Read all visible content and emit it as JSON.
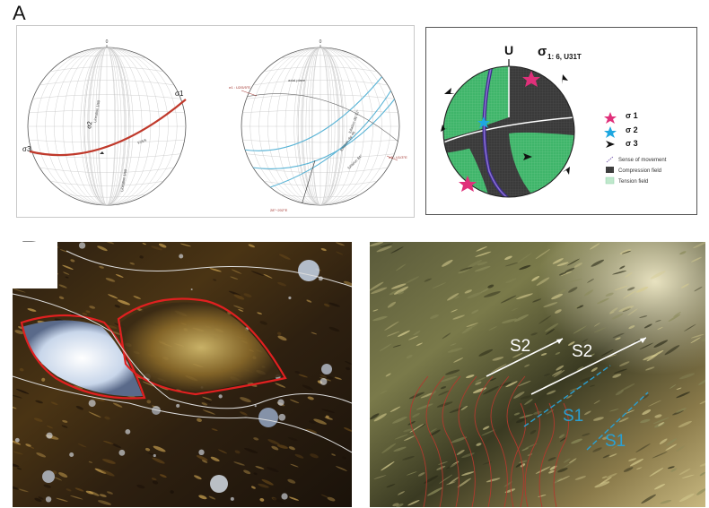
{
  "panel_labels": {
    "a": "A",
    "b": "B"
  },
  "stereonet_left": {
    "north": "0",
    "sigma1": "σ1",
    "sigma2": "σ2",
    "sigma3": "σ3",
    "label_upper": "Lineation 1/60",
    "label_trace": "F25/5",
    "label_lower": "Lineation 1/60",
    "trace_color": "#c0392b"
  },
  "stereonet_middle": {
    "north": "0",
    "label_sigma1": "σ1 : U2/5/5°E",
    "label_sigma3": "σ3 : U1/3°E",
    "label_axis": "28°~202°E",
    "label_plane_a": "axial plane",
    "label_plane_b": "foliation dip 82°",
    "label_plane_c": "foliation dip 46",
    "label_plane_d": "foliation 84°",
    "plane_color": "#5ab4d6",
    "axis_color": "#a0302a"
  },
  "stereonet_right": {
    "north": "U",
    "title_sigma": "σ",
    "title_sub": "1: 6, U31T",
    "compression_color": "#3a3a3a",
    "tension_color": "#3fb56a",
    "legend": [
      {
        "symbol": "star",
        "label": "σ 1",
        "color": "#e0307a"
      },
      {
        "symbol": "star",
        "label": "σ 2",
        "color": "#1ea7e0"
      },
      {
        "symbol": "arrow",
        "label": "σ 3",
        "color": "#111111"
      },
      {
        "symbol": "arrow-line",
        "label": "Sense of movement",
        "color": "#7a5fb0"
      },
      {
        "symbol": "grid-dark",
        "label": "Compression field",
        "color": "#3a3a3a"
      },
      {
        "symbol": "grid-light",
        "label": "Tension field",
        "color": "#bfe8cc"
      }
    ]
  },
  "micrograph_left": {
    "outline_red": "#e02020",
    "outline_white": "#dddddd"
  },
  "micrograph_right": {
    "labels": {
      "s2a": "S2",
      "s2b": "S2",
      "s1a": "S1",
      "s1b": "S1"
    },
    "s1_color": "#2b9fd1",
    "s2_color": "#ffffff",
    "trace_color": "#b03a2e"
  }
}
